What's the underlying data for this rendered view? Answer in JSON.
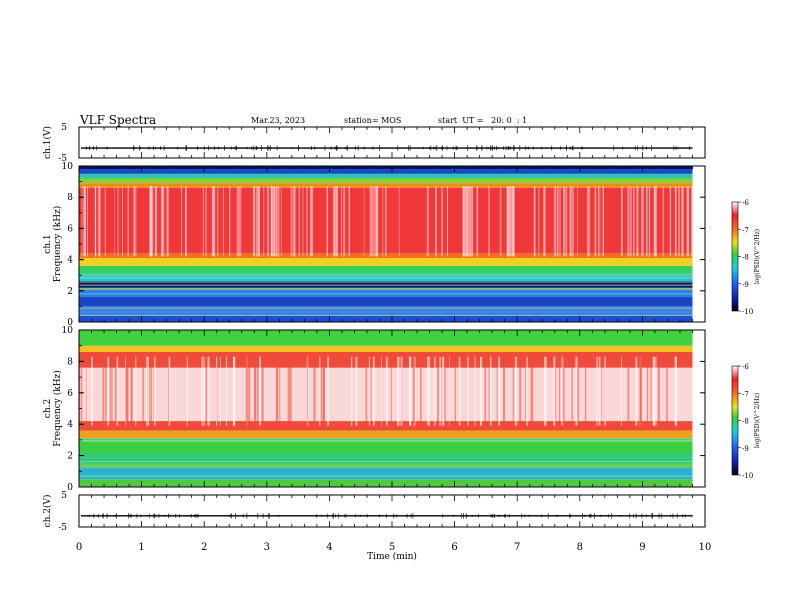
{
  "header": {
    "title": "VLF Spectra",
    "date": "Mar.23, 2023",
    "station": "station= MOS",
    "start": "start  UT =   20: 0  : 1"
  },
  "chart_data": [
    {
      "type": "line",
      "panel": "ch1-waveform",
      "ylabel": "ch.1(V)",
      "ylim": [
        -5,
        5
      ],
      "yticks": [
        5,
        -5
      ],
      "x_range": [
        0,
        10
      ],
      "data_extent_min": 9.8,
      "series": [
        {
          "level": -1.8
        }
      ]
    },
    {
      "type": "heatmap",
      "panel": "ch1-spectrogram",
      "ylabel_top": "ch.1",
      "ylabel": "Frequency (kHz)",
      "ylim": [
        0,
        10
      ],
      "yticks": [
        "0",
        "2",
        "4",
        "6",
        "8",
        "10"
      ],
      "x_range": [
        0,
        10
      ],
      "data_extent_min": 9.8,
      "bands": [
        {
          "from": 0,
          "to": 0.4,
          "color": "#1a4fd0"
        },
        {
          "from": 0.4,
          "to": 1.0,
          "color": "#3a86e8"
        },
        {
          "from": 1.0,
          "to": 1.6,
          "color": "#1c45c4"
        },
        {
          "from": 1.6,
          "to": 2.2,
          "color": "#2f7fe0"
        },
        {
          "from": 2.2,
          "to": 2.6,
          "color": "#0a1466"
        },
        {
          "from": 2.6,
          "to": 3.1,
          "color": "#20c8d8"
        },
        {
          "from": 3.1,
          "to": 3.6,
          "color": "#36d060"
        },
        {
          "from": 3.6,
          "to": 4.1,
          "color": "#f0d020"
        },
        {
          "from": 4.1,
          "to": 4.4,
          "color": "#f07020"
        },
        {
          "from": 4.4,
          "to": 8.6,
          "color": "#f0373a"
        },
        {
          "from": 8.6,
          "to": 8.9,
          "color": "#f08a20"
        },
        {
          "from": 8.9,
          "to": 9.2,
          "color": "#8ad02a"
        },
        {
          "from": 9.2,
          "to": 9.5,
          "color": "#2ac8b0"
        },
        {
          "from": 9.5,
          "to": 9.8,
          "color": "#1848c8"
        },
        {
          "from": 9.8,
          "to": 10.0,
          "color": "#0a1466"
        }
      ],
      "colorbar": {
        "label": "log(PSD)(V^2/Hz)",
        "min": -10,
        "max": -6,
        "ticks": [
          "-6",
          "-7",
          "-8",
          "-9",
          "-10"
        ]
      }
    },
    {
      "type": "heatmap",
      "panel": "ch2-spectrogram",
      "ylabel_top": "ch.2",
      "ylabel": "Frequency (kHz)",
      "ylim": [
        0,
        10
      ],
      "yticks": [
        "0",
        "2",
        "4",
        "6",
        "8",
        "10"
      ],
      "x_range": [
        0,
        10
      ],
      "data_extent_min": 9.8,
      "bands": [
        {
          "from": 0,
          "to": 0.5,
          "color": "#50c840"
        },
        {
          "from": 0.5,
          "to": 1.2,
          "color": "#2ab0d0"
        },
        {
          "from": 1.2,
          "to": 2.2,
          "color": "#30c870"
        },
        {
          "from": 2.2,
          "to": 3.1,
          "color": "#38d040"
        },
        {
          "from": 3.1,
          "to": 3.6,
          "color": "#f0a020"
        },
        {
          "from": 3.6,
          "to": 4.2,
          "color": "#f04a3a"
        },
        {
          "from": 4.2,
          "to": 7.6,
          "color": "#fbd8d8"
        },
        {
          "from": 7.6,
          "to": 8.6,
          "color": "#f04a3a"
        },
        {
          "from": 8.6,
          "to": 9.0,
          "color": "#f0c020"
        },
        {
          "from": 9.0,
          "to": 10.0,
          "color": "#40d040"
        }
      ],
      "colorbar": {
        "label": "log(PSD)(V^2/Hz)",
        "min": -10,
        "max": -6,
        "ticks": [
          "-6",
          "-7",
          "-8",
          "-9",
          "-10"
        ]
      }
    },
    {
      "type": "line",
      "panel": "ch2-waveform",
      "ylabel": "ch.2(V)",
      "ylim": [
        -5,
        5
      ],
      "yticks": [
        5,
        -5
      ],
      "x_range": [
        0,
        10
      ],
      "data_extent_min": 9.8,
      "series": [
        {
          "level": -1.5
        }
      ]
    }
  ],
  "xaxis": {
    "label": "Time (min)",
    "ticks": [
      "0",
      "1",
      "2",
      "3",
      "4",
      "5",
      "6",
      "7",
      "8",
      "9",
      "10"
    ]
  }
}
